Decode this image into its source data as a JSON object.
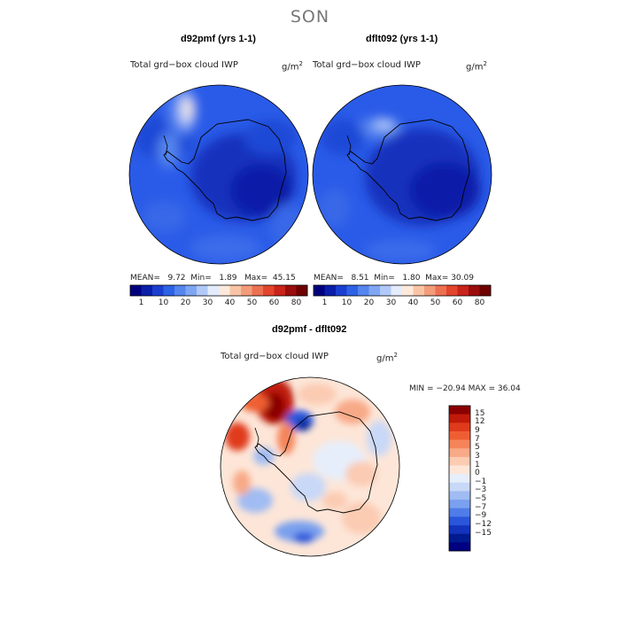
{
  "title": "SON",
  "panels": [
    {
      "heading": "d92pmf (yrs 1-1)",
      "variable": "Total grd−box cloud IWP",
      "units": "g/m",
      "units_sup": "2",
      "stats": {
        "mean_label": "MEAN=",
        "mean": "9.72",
        "min_label": "Min=",
        "min": "1.89",
        "max_label": "Max=",
        "max": "45.15"
      }
    },
    {
      "heading": "dflt092 (yrs 1-1)",
      "variable": "Total grd−box cloud IWP",
      "units": "g/m",
      "units_sup": "2",
      "stats": {
        "mean_label": "MEAN=",
        "mean": "8.51",
        "min_label": "Min=",
        "min": "1.80",
        "max_label": "Max=",
        "max": "30.09"
      }
    }
  ],
  "colorbar_abs": {
    "levels": [
      "1",
      "10",
      "20",
      "30",
      "40",
      "50",
      "60",
      "80"
    ],
    "colors": [
      "#00007f",
      "#0a1ea8",
      "#1a3fd0",
      "#2e62e6",
      "#5585ee",
      "#7ea6f4",
      "#b1c9f8",
      "#e2ecfc",
      "#fde9dc",
      "#f9c4a6",
      "#f39c7a",
      "#ec7052",
      "#e2452c",
      "#c9241a",
      "#9a0d0d",
      "#6e0000"
    ]
  },
  "difference": {
    "heading": "d92pmf - dflt092",
    "variable": "Total grd−box cloud IWP",
    "units": "g/m",
    "units_sup": "2",
    "minmax": "MIN = −20.94 MAX =  36.04",
    "levels": [
      "15",
      "12",
      "9",
      "7",
      "5",
      "3",
      "1",
      "0",
      "−1",
      "−3",
      "−5",
      "−7",
      "−9",
      "−12",
      "−15"
    ],
    "colors": [
      "#8b0000",
      "#c01a0a",
      "#e03a1c",
      "#ef5e32",
      "#f5845a",
      "#f8a987",
      "#fbcbb2",
      "#fde6d8",
      "#e6eefb",
      "#c8d8f7",
      "#a0bcf2",
      "#7aa0ee",
      "#4f7ce8",
      "#2a56dc",
      "#1333bd",
      "#001a8f",
      "#000080"
    ]
  }
}
